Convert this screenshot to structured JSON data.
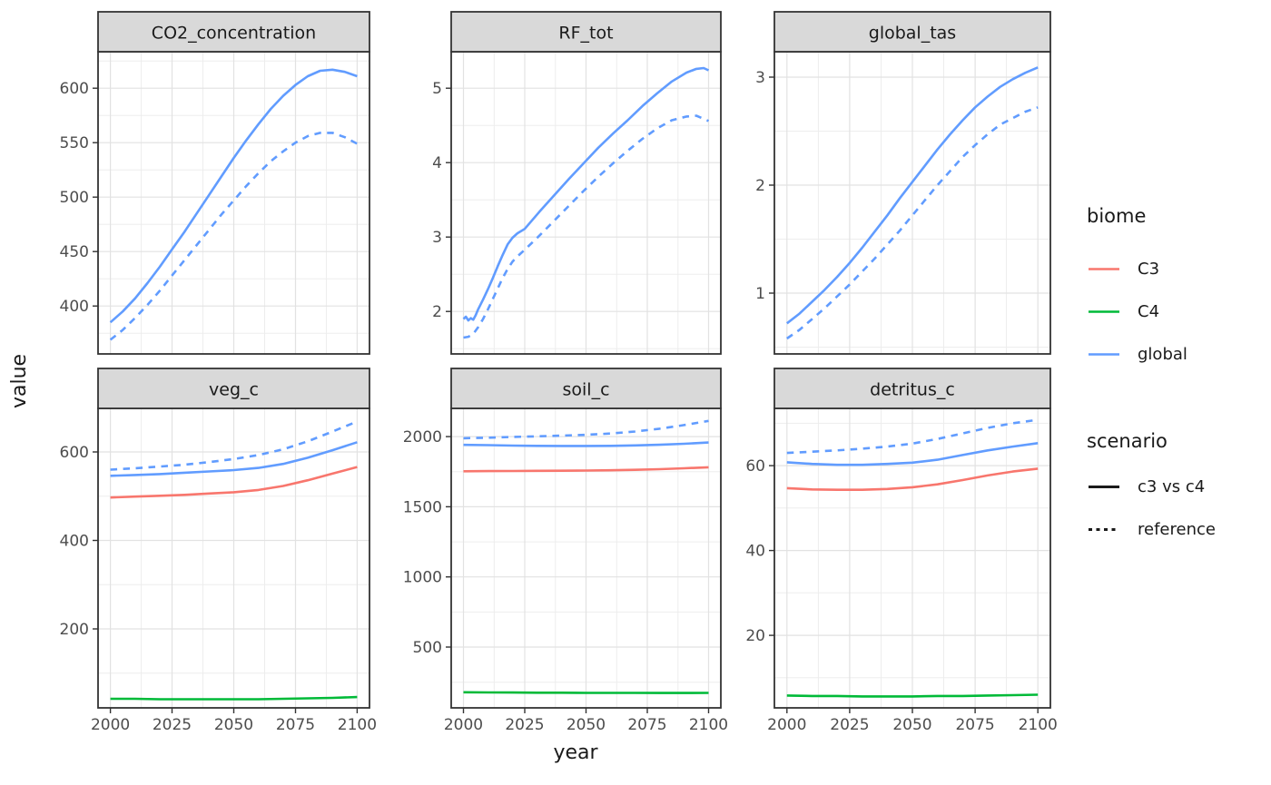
{
  "figure": {
    "xlabel": "year",
    "ylabel": "value",
    "x_ticks": [
      2000,
      2025,
      2050,
      2075,
      2100
    ],
    "x_minor": [
      2012.5,
      2037.5,
      2062.5,
      2087.5
    ],
    "x_range": [
      1995,
      2105
    ],
    "colors": {
      "C3": "#F8766D",
      "C4": "#00BA38",
      "global": "#619CFF"
    },
    "scenario_key_color": "#1a1a1a",
    "grid_major_color": "#E2E2E2",
    "grid_minor_color": "#EDEDED",
    "strip_bg": "#D9D9D9",
    "border_color": "#333333",
    "tick_label_color": "#4d4d4d"
  },
  "legend": {
    "biome": {
      "title": "biome",
      "entries": [
        {
          "label": "C3",
          "key": "C3"
        },
        {
          "label": "C4",
          "key": "C4"
        },
        {
          "label": "global",
          "key": "global"
        }
      ]
    },
    "scenario": {
      "title": "scenario",
      "entries": [
        {
          "label": "c3 vs c4",
          "linetype": "solid"
        },
        {
          "label": "reference",
          "linetype": "dashed"
        }
      ]
    }
  },
  "chart_data": [
    {
      "type": "line",
      "title": "CO2_concentration",
      "row": 0,
      "col": 0,
      "ylim": [
        356,
        633.5
      ],
      "yticks": [
        400,
        450,
        500,
        550,
        600
      ],
      "series": [
        {
          "biome": "global",
          "scenario": "c3 vs c4",
          "x": [
            2000,
            2005,
            2010,
            2015,
            2020,
            2025,
            2030,
            2035,
            2040,
            2045,
            2050,
            2055,
            2060,
            2065,
            2070,
            2075,
            2080,
            2085,
            2090,
            2095,
            2100
          ],
          "y": [
            385,
            395,
            407,
            421,
            436,
            452,
            468,
            485,
            502,
            519,
            536,
            552,
            567,
            581,
            593,
            603,
            611,
            616,
            617,
            615,
            611
          ]
        },
        {
          "biome": "global",
          "scenario": "reference",
          "x": [
            2000,
            2005,
            2010,
            2015,
            2020,
            2025,
            2030,
            2035,
            2040,
            2045,
            2050,
            2055,
            2060,
            2065,
            2070,
            2075,
            2080,
            2085,
            2090,
            2095,
            2100
          ],
          "y": [
            369,
            378,
            389,
            401,
            414,
            428,
            442,
            456,
            470,
            484,
            497,
            510,
            522,
            533,
            542,
            550,
            556,
            559,
            559,
            555,
            549
          ]
        }
      ]
    },
    {
      "type": "line",
      "title": "RF_tot",
      "row": 0,
      "col": 1,
      "ylim": [
        1.43,
        5.49
      ],
      "yticks": [
        2,
        3,
        4,
        5
      ],
      "series": [
        {
          "biome": "global",
          "scenario": "c3 vs c4",
          "x": [
            2000,
            2001,
            2002,
            2003,
            2004,
            2005,
            2006,
            2008,
            2010,
            2012,
            2014,
            2016,
            2018,
            2020,
            2022,
            2025,
            2031,
            2037,
            2043,
            2049,
            2055,
            2061,
            2067,
            2073,
            2079,
            2085,
            2091,
            2095,
            2098,
            2100
          ],
          "y": [
            1.9,
            1.93,
            1.88,
            1.91,
            1.89,
            1.95,
            2.03,
            2.16,
            2.3,
            2.45,
            2.61,
            2.76,
            2.9,
            2.99,
            3.05,
            3.11,
            3.34,
            3.56,
            3.78,
            3.99,
            4.2,
            4.39,
            4.57,
            4.76,
            4.93,
            5.09,
            5.21,
            5.26,
            5.27,
            5.24
          ]
        },
        {
          "biome": "global",
          "scenario": "reference",
          "x": [
            2000,
            2002,
            2004,
            2006,
            2008,
            2010,
            2012,
            2014,
            2016,
            2018,
            2020,
            2022,
            2025,
            2031,
            2037,
            2043,
            2049,
            2055,
            2061,
            2067,
            2073,
            2079,
            2085,
            2091,
            2095,
            2100
          ],
          "y": [
            1.65,
            1.66,
            1.7,
            1.79,
            1.9,
            2.03,
            2.17,
            2.31,
            2.45,
            2.57,
            2.67,
            2.74,
            2.83,
            3.02,
            3.22,
            3.42,
            3.62,
            3.81,
            3.99,
            4.16,
            4.32,
            4.46,
            4.57,
            4.62,
            4.63,
            4.56
          ]
        }
      ]
    },
    {
      "type": "line",
      "title": "global_tas",
      "row": 0,
      "col": 2,
      "ylim": [
        0.437,
        3.235
      ],
      "yticks": [
        1,
        2,
        3
      ],
      "series": [
        {
          "biome": "global",
          "scenario": "c3 vs c4",
          "x": [
            2000,
            2005,
            2010,
            2015,
            2020,
            2025,
            2030,
            2035,
            2040,
            2045,
            2050,
            2055,
            2060,
            2065,
            2070,
            2075,
            2080,
            2085,
            2090,
            2095,
            2100
          ],
          "y": [
            0.72,
            0.81,
            0.92,
            1.03,
            1.15,
            1.28,
            1.42,
            1.57,
            1.72,
            1.88,
            2.03,
            2.18,
            2.33,
            2.47,
            2.6,
            2.72,
            2.82,
            2.91,
            2.98,
            3.04,
            3.09
          ]
        },
        {
          "biome": "global",
          "scenario": "reference",
          "x": [
            2000,
            2005,
            2010,
            2015,
            2020,
            2025,
            2030,
            2035,
            2040,
            2045,
            2050,
            2055,
            2060,
            2065,
            2070,
            2075,
            2080,
            2085,
            2090,
            2095,
            2100
          ],
          "y": [
            0.58,
            0.66,
            0.76,
            0.86,
            0.97,
            1.08,
            1.2,
            1.32,
            1.45,
            1.58,
            1.72,
            1.86,
            2.0,
            2.13,
            2.26,
            2.37,
            2.47,
            2.56,
            2.62,
            2.68,
            2.72
          ]
        }
      ]
    },
    {
      "type": "line",
      "title": "veg_c",
      "row": 1,
      "col": 0,
      "ylim": [
        21.5,
        698.5
      ],
      "yticks": [
        200,
        400,
        600
      ],
      "series": [
        {
          "biome": "C4",
          "scenario": "c3 vs c4",
          "x": [
            2000,
            2010,
            2020,
            2030,
            2040,
            2050,
            2060,
            2070,
            2080,
            2090,
            2100
          ],
          "y": [
            42,
            42,
            41,
            41,
            41,
            41,
            41,
            42,
            43,
            44,
            46
          ]
        },
        {
          "biome": "C3",
          "scenario": "c3 vs c4",
          "x": [
            2000,
            2010,
            2020,
            2030,
            2040,
            2050,
            2060,
            2070,
            2080,
            2090,
            2100
          ],
          "y": [
            497,
            499,
            501,
            503,
            506,
            509,
            514,
            523,
            536,
            551,
            566
          ]
        },
        {
          "biome": "global",
          "scenario": "c3 vs c4",
          "x": [
            2000,
            2010,
            2020,
            2030,
            2040,
            2050,
            2060,
            2070,
            2080,
            2090,
            2100
          ],
          "y": [
            546,
            548,
            550,
            553,
            556,
            559,
            564,
            573,
            587,
            604,
            622
          ]
        },
        {
          "biome": "global",
          "scenario": "reference",
          "x": [
            2000,
            2010,
            2020,
            2030,
            2040,
            2050,
            2060,
            2070,
            2080,
            2090,
            2100
          ],
          "y": [
            560,
            563,
            567,
            571,
            577,
            584,
            593,
            606,
            624,
            646,
            669
          ]
        }
      ]
    },
    {
      "type": "line",
      "title": "soil_c",
      "row": 1,
      "col": 1,
      "ylim": [
        67,
        2201
      ],
      "yticks": [
        500,
        1000,
        1500,
        2000
      ],
      "series": [
        {
          "biome": "C4",
          "scenario": "c3 vs c4",
          "x": [
            2000,
            2010,
            2020,
            2030,
            2040,
            2050,
            2060,
            2070,
            2080,
            2090,
            2100
          ],
          "y": [
            178,
            177,
            176,
            175,
            175,
            174,
            174,
            174,
            173,
            173,
            174
          ]
        },
        {
          "biome": "C3",
          "scenario": "c3 vs c4",
          "x": [
            2000,
            2010,
            2020,
            2030,
            2040,
            2050,
            2060,
            2070,
            2080,
            2090,
            2100
          ],
          "y": [
            1753,
            1754,
            1755,
            1756,
            1757,
            1758,
            1760,
            1763,
            1768,
            1774,
            1781
          ]
        },
        {
          "biome": "global",
          "scenario": "c3 vs c4",
          "x": [
            2000,
            2010,
            2020,
            2030,
            2040,
            2050,
            2060,
            2070,
            2080,
            2090,
            2100
          ],
          "y": [
            1941,
            1939,
            1936,
            1934,
            1933,
            1933,
            1934,
            1937,
            1942,
            1949,
            1958
          ]
        },
        {
          "biome": "global",
          "scenario": "reference",
          "x": [
            2000,
            2010,
            2020,
            2030,
            2040,
            2050,
            2060,
            2070,
            2080,
            2090,
            2100
          ],
          "y": [
            1988,
            1992,
            1997,
            2002,
            2007,
            2013,
            2022,
            2036,
            2056,
            2082,
            2112
          ]
        }
      ]
    },
    {
      "type": "line",
      "title": "detritus_c",
      "row": 1,
      "col": 2,
      "ylim": [
        2.9,
        73.5
      ],
      "yticks": [
        20,
        40,
        60
      ],
      "series": [
        {
          "biome": "C4",
          "scenario": "c3 vs c4",
          "x": [
            2000,
            2010,
            2020,
            2030,
            2040,
            2050,
            2060,
            2070,
            2080,
            2090,
            2100
          ],
          "y": [
            5.8,
            5.7,
            5.7,
            5.6,
            5.6,
            5.6,
            5.7,
            5.7,
            5.8,
            5.9,
            6.0
          ]
        },
        {
          "biome": "C3",
          "scenario": "c3 vs c4",
          "x": [
            2000,
            2010,
            2020,
            2030,
            2040,
            2050,
            2060,
            2070,
            2080,
            2090,
            2100
          ],
          "y": [
            54.7,
            54.4,
            54.3,
            54.3,
            54.5,
            54.9,
            55.6,
            56.6,
            57.7,
            58.6,
            59.3
          ]
        },
        {
          "biome": "global",
          "scenario": "c3 vs c4",
          "x": [
            2000,
            2010,
            2020,
            2030,
            2040,
            2050,
            2060,
            2070,
            2080,
            2090,
            2100
          ],
          "y": [
            60.8,
            60.4,
            60.2,
            60.2,
            60.4,
            60.7,
            61.4,
            62.5,
            63.6,
            64.5,
            65.3
          ]
        },
        {
          "biome": "global",
          "scenario": "reference",
          "x": [
            2000,
            2010,
            2020,
            2030,
            2040,
            2050,
            2060,
            2070,
            2080,
            2090,
            2100
          ],
          "y": [
            63.0,
            63.3,
            63.6,
            64.0,
            64.5,
            65.2,
            66.3,
            67.6,
            68.9,
            70.0,
            70.8
          ]
        }
      ]
    }
  ]
}
